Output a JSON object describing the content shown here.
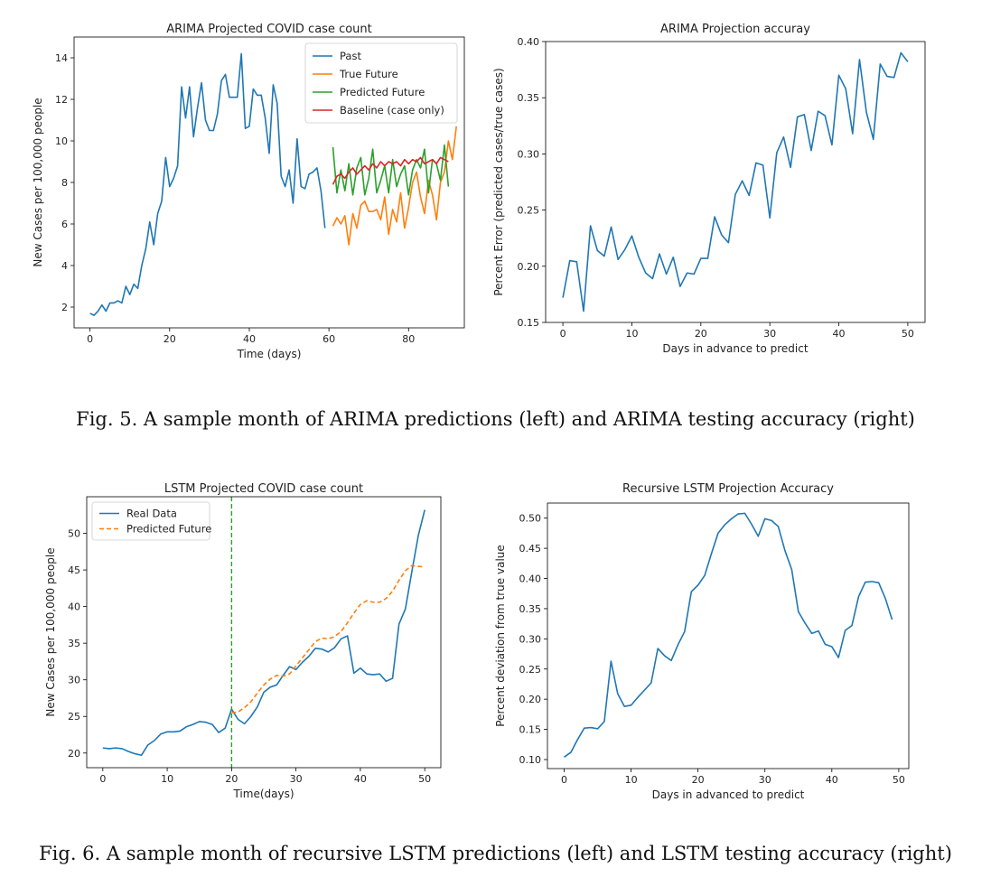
{
  "figures": [
    {
      "caption": "Fig. 5.  A sample month of ARIMA predictions (left) and ARIMA testing accuracy (right)"
    },
    {
      "caption": "Fig. 6.  A sample month of recursive LSTM predictions (left) and LSTM testing accuracy (right)"
    }
  ],
  "chart_data": [
    {
      "type": "line",
      "title": "ARIMA Projected COVID case count",
      "xlabel": "Time (days)",
      "ylabel": "New Cases per 100,000 people",
      "xlim": [
        -4,
        94
      ],
      "ylim": [
        1.0,
        15.0
      ],
      "xticks": [
        0,
        20,
        40,
        60,
        80
      ],
      "yticks": [
        2,
        4,
        6,
        8,
        10,
        12,
        14
      ],
      "grid": false,
      "legend": "top-right",
      "series": [
        {
          "name": "Past",
          "color": "#1f77b4",
          "x0": 0,
          "values": [
            1.7,
            1.6,
            1.8,
            2.1,
            1.8,
            2.2,
            2.2,
            2.3,
            2.2,
            3.0,
            2.6,
            3.1,
            2.9,
            4.0,
            4.8,
            6.1,
            5.0,
            6.5,
            7.1,
            9.2,
            7.8,
            8.2,
            8.8,
            12.6,
            11.1,
            12.6,
            10.2,
            11.6,
            12.8,
            11.0,
            10.5,
            10.5,
            11.3,
            12.9,
            13.2,
            12.1,
            12.1,
            12.1,
            14.2,
            10.6,
            10.7,
            12.5,
            12.2,
            12.2,
            11.1,
            9.4,
            12.7,
            11.8,
            8.3,
            7.8,
            8.6,
            7.0,
            10.1,
            7.8,
            7.7,
            8.4,
            8.5,
            8.7,
            7.6,
            5.8
          ]
        },
        {
          "name": "True Future",
          "color": "#ff7f0e",
          "x0": 61,
          "values": [
            5.9,
            6.3,
            6.0,
            6.4,
            5.0,
            6.5,
            5.8,
            6.9,
            7.1,
            6.6,
            6.6,
            6.7,
            6.2,
            7.3,
            5.5,
            6.7,
            6.1,
            7.5,
            5.8,
            6.8,
            8.0,
            8.5,
            7.3,
            6.5,
            8.1,
            7.4,
            6.2,
            8.0,
            8.5,
            10.0,
            9.1,
            10.7
          ]
        },
        {
          "name": "Predicted Future",
          "color": "#2ca02c",
          "x0": 61,
          "values": [
            9.7,
            7.5,
            8.6,
            7.6,
            8.9,
            7.4,
            8.7,
            9.2,
            7.4,
            8.2,
            9.6,
            7.5,
            8.1,
            8.8,
            7.5,
            9.1,
            7.8,
            8.4,
            8.8,
            7.4,
            8.6,
            9.1,
            8.7,
            9.6,
            7.5,
            9.1,
            8.9,
            8.1,
            9.8,
            7.8
          ]
        },
        {
          "name": "Baseline (case only)",
          "color": "#d62728",
          "x0": 61,
          "values": [
            7.9,
            8.3,
            8.4,
            8.2,
            8.5,
            8.7,
            8.4,
            8.6,
            8.8,
            8.6,
            8.9,
            8.7,
            9.0,
            8.8,
            9.0,
            8.9,
            9.0,
            8.8,
            9.1,
            8.9,
            9.1,
            9.0,
            9.2,
            8.9,
            9.0,
            9.1,
            8.9,
            9.2,
            9.1,
            9.0
          ]
        }
      ]
    },
    {
      "type": "line",
      "title": "ARIMA Projection accuray",
      "xlabel": "Days in advance to predict",
      "ylabel": "Percent Error (predicted cases/true cases)",
      "xlim": [
        -2.5,
        52.5
      ],
      "ylim": [
        0.15,
        0.4
      ],
      "xticks": [
        0,
        10,
        20,
        30,
        40,
        50
      ],
      "yticks": [
        0.15,
        0.2,
        0.25,
        0.3,
        0.35,
        0.4
      ],
      "grid": false,
      "series": [
        {
          "name": "",
          "color": "#1f77b4",
          "x0": 0,
          "values": [
            0.172,
            0.205,
            0.204,
            0.16,
            0.236,
            0.214,
            0.209,
            0.235,
            0.206,
            0.215,
            0.227,
            0.208,
            0.194,
            0.189,
            0.211,
            0.193,
            0.208,
            0.182,
            0.194,
            0.193,
            0.207,
            0.207,
            0.244,
            0.228,
            0.221,
            0.264,
            0.276,
            0.263,
            0.292,
            0.29,
            0.243,
            0.301,
            0.315,
            0.288,
            0.333,
            0.335,
            0.303,
            0.338,
            0.334,
            0.308,
            0.37,
            0.358,
            0.318,
            0.384,
            0.337,
            0.313,
            0.38,
            0.369,
            0.368,
            0.39,
            0.382
          ]
        }
      ]
    },
    {
      "type": "line",
      "title": "LSTM Projected COVID case count",
      "xlabel": "Time(days)",
      "ylabel": "New Cases per 100,000 people",
      "xlim": [
        -2.5,
        52.5
      ],
      "ylim": [
        18.0,
        55.0
      ],
      "xticks": [
        0,
        10,
        20,
        30,
        40,
        50
      ],
      "yticks": [
        20,
        25,
        30,
        35,
        40,
        45,
        50
      ],
      "grid": false,
      "legend": "top-left",
      "vline": {
        "x": 20,
        "color": "#2ca02c"
      },
      "series": [
        {
          "name": "Real Data",
          "color": "#1f77b4",
          "x0": 0,
          "values": [
            20.7,
            20.6,
            20.7,
            20.6,
            20.2,
            19.9,
            19.7,
            21.1,
            21.7,
            22.6,
            22.9,
            22.9,
            23.0,
            23.6,
            23.9,
            24.3,
            24.2,
            23.9,
            22.8,
            23.4,
            26.0,
            24.6,
            24.0,
            25.0,
            26.3,
            28.3,
            29.0,
            29.3,
            30.6,
            31.8,
            31.4,
            32.4,
            33.2,
            34.3,
            34.2,
            33.8,
            34.4,
            35.6,
            36.0,
            30.9,
            31.6,
            30.8,
            30.7,
            30.8,
            29.8,
            30.2,
            37.6,
            39.7,
            44.8,
            49.7,
            53.2
          ]
        },
        {
          "name": "Predicted Future",
          "color": "#ff7f0e",
          "dashed": true,
          "x0": 20,
          "values": [
            25.5,
            25.6,
            26.2,
            27.0,
            28.2,
            29.3,
            30.1,
            30.6,
            30.5,
            30.8,
            31.9,
            33.0,
            34.1,
            35.2,
            35.7,
            35.6,
            35.9,
            36.6,
            37.8,
            39.1,
            40.3,
            40.8,
            40.6,
            40.6,
            41.1,
            42.1,
            43.6,
            44.9,
            45.6,
            45.5,
            45.4
          ]
        }
      ]
    },
    {
      "type": "line",
      "title": "Recursive LSTM Projection Accuracy",
      "xlabel": "Days in advanced to predict",
      "ylabel": "Percent deviation from true value",
      "xlim": [
        -2.5,
        51.5
      ],
      "ylim": [
        0.085,
        0.525
      ],
      "xticks": [
        0,
        10,
        20,
        30,
        40,
        50
      ],
      "yticks": [
        0.1,
        0.15,
        0.2,
        0.25,
        0.3,
        0.35,
        0.4,
        0.45,
        0.5
      ],
      "grid": false,
      "series": [
        {
          "name": "",
          "color": "#1f77b4",
          "x0": 0,
          "values": [
            0.104,
            0.112,
            0.133,
            0.152,
            0.153,
            0.151,
            0.163,
            0.263,
            0.209,
            0.188,
            0.19,
            0.203,
            0.215,
            0.227,
            0.284,
            0.272,
            0.264,
            0.29,
            0.312,
            0.378,
            0.389,
            0.405,
            0.441,
            0.475,
            0.489,
            0.499,
            0.507,
            0.508,
            0.49,
            0.47,
            0.499,
            0.496,
            0.486,
            0.446,
            0.415,
            0.345,
            0.326,
            0.309,
            0.313,
            0.291,
            0.287,
            0.269,
            0.314,
            0.322,
            0.37,
            0.394,
            0.395,
            0.393,
            0.367,
            0.332
          ]
        }
      ]
    }
  ]
}
